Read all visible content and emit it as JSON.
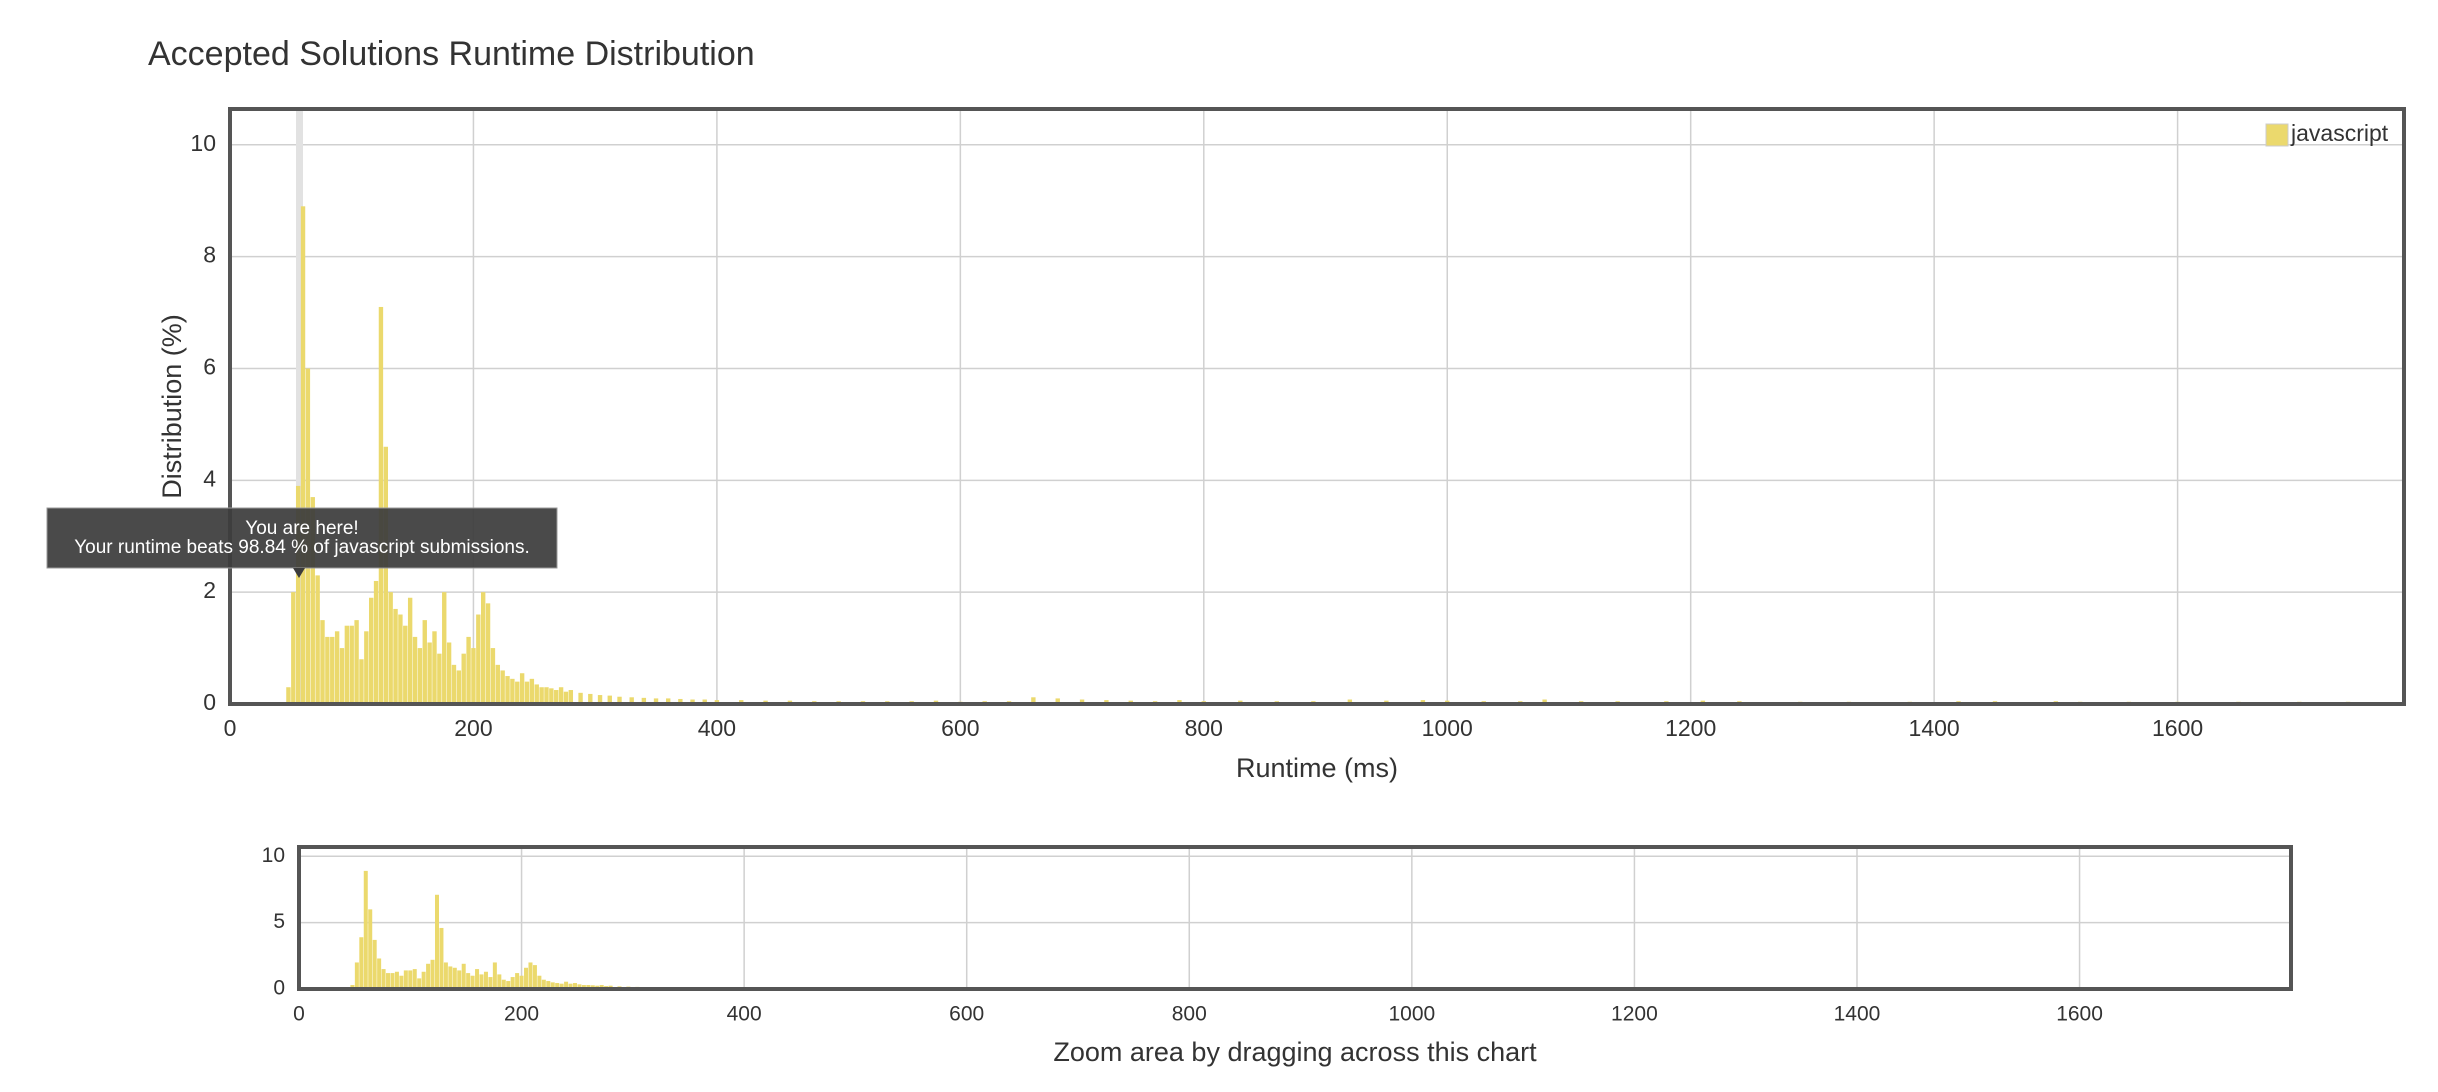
{
  "chart_data": [
    {
      "type": "bar",
      "title": "Accepted Solutions Runtime Distribution",
      "xlabel": "Runtime (ms)",
      "ylabel": "Distribution (%)",
      "x": [
        48,
        52,
        56,
        60,
        64,
        68,
        72,
        76,
        80,
        84,
        88,
        92,
        96,
        100,
        104,
        108,
        112,
        116,
        120,
        124,
        128,
        132,
        136,
        140,
        144,
        148,
        152,
        156,
        160,
        164,
        168,
        172,
        176,
        180,
        184,
        188,
        192,
        196,
        200,
        204,
        208,
        212,
        216,
        220,
        224,
        228,
        232,
        236,
        240,
        244,
        248,
        252,
        256,
        260,
        264,
        268,
        272,
        276,
        280,
        288,
        296,
        304,
        312,
        320,
        330,
        340,
        350,
        360,
        370,
        380,
        390,
        400,
        420,
        440,
        460,
        480,
        500,
        520,
        540,
        560,
        580,
        600,
        620,
        640,
        660,
        680,
        700,
        720,
        740,
        760,
        780,
        800,
        830,
        860,
        890,
        920,
        950,
        980,
        1000,
        1030,
        1060,
        1080,
        1110,
        1140,
        1180,
        1210,
        1240,
        1290,
        1330,
        1380,
        1420,
        1450,
        1500,
        1520,
        1560,
        1600,
        1650,
        1700,
        1740
      ],
      "series": [
        {
          "name": "javascript",
          "color": "#ebd96d",
          "values": [
            0.3,
            2.0,
            3.9,
            8.9,
            6.0,
            3.7,
            2.3,
            1.5,
            1.2,
            1.2,
            1.3,
            1.0,
            1.4,
            1.4,
            1.5,
            0.8,
            1.3,
            1.9,
            2.2,
            7.1,
            4.6,
            2.0,
            1.7,
            1.6,
            1.4,
            1.9,
            1.2,
            1.0,
            1.5,
            1.1,
            1.3,
            0.9,
            2.0,
            1.1,
            0.7,
            0.6,
            0.9,
            1.2,
            1.0,
            1.6,
            2.0,
            1.8,
            1.0,
            0.7,
            0.6,
            0.5,
            0.45,
            0.4,
            0.55,
            0.4,
            0.45,
            0.35,
            0.3,
            0.3,
            0.28,
            0.25,
            0.3,
            0.22,
            0.25,
            0.2,
            0.18,
            0.16,
            0.15,
            0.13,
            0.12,
            0.11,
            0.1,
            0.1,
            0.09,
            0.08,
            0.08,
            0.07,
            0.07,
            0.06,
            0.06,
            0.05,
            0.05,
            0.05,
            0.05,
            0.05,
            0.06,
            0.04,
            0.05,
            0.05,
            0.12,
            0.1,
            0.08,
            0.07,
            0.06,
            0.05,
            0.07,
            0.05,
            0.06,
            0.05,
            0.05,
            0.08,
            0.06,
            0.07,
            0.06,
            0.05,
            0.05,
            0.08,
            0.05,
            0.05,
            0.05,
            0.06,
            0.05,
            0.04,
            0.04,
            0.04,
            0.05,
            0.05,
            0.05,
            0.04,
            0.04,
            0.04,
            0.04,
            0.04,
            0.04
          ]
        }
      ],
      "xlim": [
        0,
        1786
      ],
      "ylim": [
        0,
        10.64
      ],
      "xticks": [
        0,
        200,
        400,
        600,
        800,
        1000,
        1200,
        1400,
        1600
      ],
      "yticks": [
        0,
        2,
        4,
        6,
        8,
        10
      ],
      "grid": true,
      "legend": "top-right",
      "annotation": [
        "You are here!",
        "Your runtime beats 98.84 % of javascript submissions."
      ]
    },
    {
      "type": "bar",
      "xlabel": "Zoom area by dragging across this chart",
      "xlim": [
        0,
        1790
      ],
      "ylim": [
        0,
        10.7
      ],
      "xticks": [
        0,
        200,
        400,
        600,
        800,
        1000,
        1200,
        1400,
        1600
      ],
      "yticks": [
        0,
        5,
        10
      ],
      "grid": true
    }
  ]
}
